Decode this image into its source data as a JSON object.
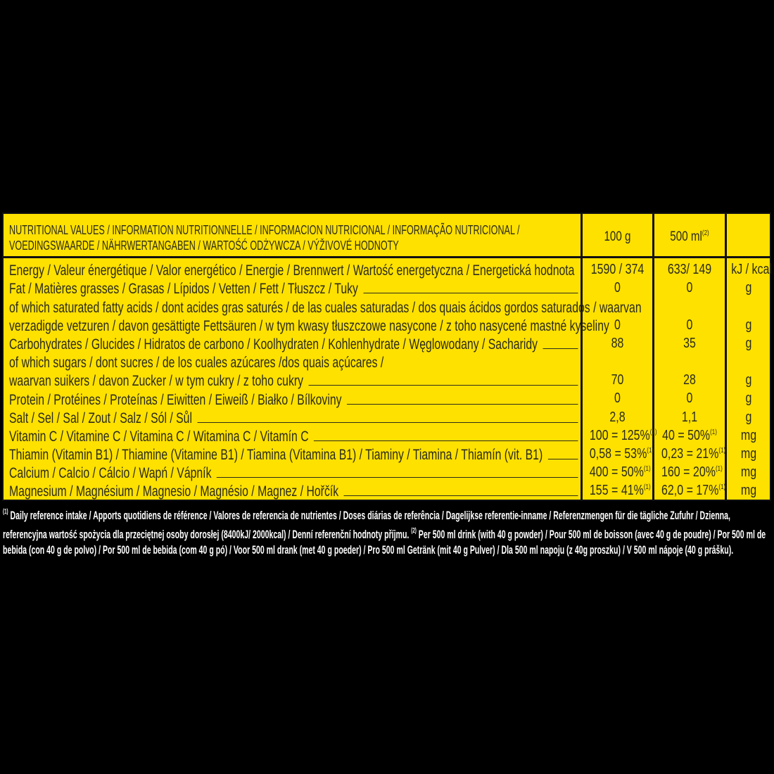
{
  "header": {
    "title_lines": [
      "NUTRITIONAL VALUES / INFORMATION NUTRITIONNELLE / INFORMACION NUTRICIONAL / INFORMAÇÃO NUTRICIONAL /",
      "VOEDINGSWAARDE / NÄHRWERTANGABEN / WARTOŚĆ ODŻYWCZA / VÝŽIVOVÉ HODNOTY"
    ],
    "col_100g": "100 g",
    "col_500ml": "500 ml",
    "col_500ml_sup": "(2)"
  },
  "rows": [
    {
      "lines": [
        "Energy / Valeur énergétique / Valor energético / Energie / Brennwert / Wartość energetyczna / Energetická hodnota"
      ],
      "fill": false,
      "v100": "1590 / 374",
      "v500": "633/ 149",
      "unit": "kJ / kcal"
    },
    {
      "lines": [
        "Fat / Matières grasses / Grasas / Lípidos / Vetten / Fett / Tłuszcz / Tuky"
      ],
      "fill": true,
      "v100": "0",
      "v500": "0",
      "unit": "g"
    },
    {
      "lines": [
        "of which saturated fatty acids / dont acides gras saturés / de las cuales saturadas / dos quais ácidos gordos saturados / waarvan",
        "verzadigde vetzuren / davon gesättigte Fettsäuren / w tym kwasy tłuszczowe nasycone / z toho nasycené mastné kyseliny"
      ],
      "fill": true,
      "v100": "0",
      "v500": "0",
      "unit": "g"
    },
    {
      "lines": [
        "Carbohydrates / Glucides / Hidratos de carbono / Koolhydraten / Kohlenhydrate / Węglowodany / Sacharidy"
      ],
      "fill": true,
      "v100": "88",
      "v500": "35",
      "unit": "g"
    },
    {
      "lines": [
        "of which sugars / dont sucres / de los cuales azúcares /dos quais açúcares /",
        "waarvan suikers / davon Zucker  / w tym cukry / z toho cukry"
      ],
      "fill": true,
      "v100": "70",
      "v500": "28",
      "unit": "g"
    },
    {
      "lines": [
        "Protein / Protéines / Proteínas / Eiwitten / Eiweiß / Białko / Bílkoviny"
      ],
      "fill": true,
      "v100": "0",
      "v500": "0",
      "unit": "g"
    },
    {
      "lines": [
        "Salt / Sel / Sal / Zout / Salz / Sól / Sůl"
      ],
      "fill": true,
      "v100": "2,8",
      "v500": "1,1",
      "unit": "g"
    },
    {
      "lines": [
        "Vitamin C / Vitamine C / Vitamina C / Witamina C / Vitamín C"
      ],
      "fill": true,
      "v100": "100 = 125%",
      "v100_sup": "(1)",
      "v500": "40 = 50%",
      "v500_sup": "(1)",
      "unit": "mg"
    },
    {
      "lines": [
        "Thiamin (Vitamin B1) / Thiamine (Vitamine B1) / Tiamina (Vitamina B1) / Tiaminy / Tiamina / Thiamín (vit. B1)"
      ],
      "fill": true,
      "v100": "0,58 = 53%",
      "v100_sup": "(1)",
      "v500": "0,23 = 21%",
      "v500_sup": "(1)",
      "unit": "mg"
    },
    {
      "lines": [
        "Calcium / Calcio / Cálcio / Wapń / Vápník"
      ],
      "fill": true,
      "v100": "400 = 50%",
      "v100_sup": "(1)",
      "v500": "160 = 20%",
      "v500_sup": "(1)",
      "unit": "mg"
    },
    {
      "lines": [
        "Magnesium / Magnésium / Magnesio / Magnésio / Magnez / Hořčík"
      ],
      "fill": true,
      "v100": "155 = 41%",
      "v100_sup": "(1)",
      "v500": "62,0 = 17%",
      "v500_sup": "(1)",
      "unit": "mg"
    }
  ],
  "footer": {
    "sup1": "(1)",
    "text1": " Daily reference intake / Apports quotidiens de référence / Valores de referencia de nutrientes / Doses diárias de referência / Dagelijkse referentie-inname / Referenzmengen für die tägliche Zufuhr / Dzienna, referencyjna wartość spożycia dla przeciętnej osoby dorosłej (8400kJ/ 2000kcal)  / Denní referenční hodnoty příjmu. ",
    "sup2": "(2)",
    "text2": " Per 500 ml drink (with 40 g powder) / Pour 500 ml de boisson (avec 40 g de poudre) / Por 500 ml de bebida (con 40 g de polvo) / Por 500 ml de bebida (com 40 g pó) / Voor 500 ml drank (met 40 g poeder) / Pro 500 ml Getränk (mit 40 g Pulver) / Dla 500 ml napoju (z 40g proszku) / V 500 ml nápoje (40 g prášku)."
  },
  "colors": {
    "label_bg": "#ffe100",
    "text": "#2b2b1c",
    "background": "#000000",
    "footer_text": "#ffffff"
  }
}
